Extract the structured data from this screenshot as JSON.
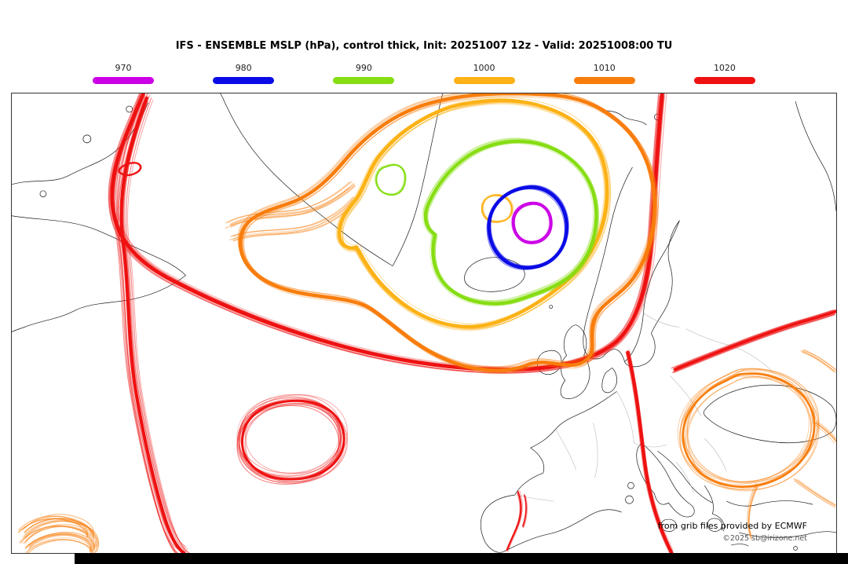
{
  "title": "IFS - ENSEMBLE MSLP (hPa), control thick, Init: 20251007 12z - Valid: 20251008:00 TU",
  "legend": {
    "items": [
      {
        "label": "970",
        "color": "#cc00e6"
      },
      {
        "label": "980",
        "color": "#0b0be6"
      },
      {
        "label": "990",
        "color": "#86dd12"
      },
      {
        "label": "1000",
        "color": "#fcb216"
      },
      {
        "label": "1010",
        "color": "#f87d0c"
      },
      {
        "label": "1020",
        "color": "#ee1111"
      }
    ]
  },
  "map": {
    "credit_line1": "from grib files provided by ECMWF",
    "credit_line2": "©2025 sb@irizone.net"
  },
  "chart_data": {
    "type": "contour-map",
    "title": "IFS - ENSEMBLE MSLP (hPa), control thick, Init: 20251007 12z - Valid: 20251008:00 TU",
    "model": "IFS ENSEMBLE",
    "variable": "MSLP (hPa)",
    "init": "20251007 12z",
    "valid": "20251008:00 TU",
    "levels_hpa": [
      970,
      980,
      990,
      1000,
      1010,
      1020
    ],
    "level_colors": [
      "#cc00e6",
      "#0b0be6",
      "#86dd12",
      "#fcb216",
      "#f87d0c",
      "#ee1111"
    ],
    "notes": "Ensemble spaghetti isobars over North Atlantic / Europe; deep low (<970 hPa) centered southeast of Iceland; 1020 hPa belt across mid-Atlantic and eastern Europe; closed 1020 ring in mid-Atlantic; 1010 ring near Turkey/Black Sea"
  }
}
